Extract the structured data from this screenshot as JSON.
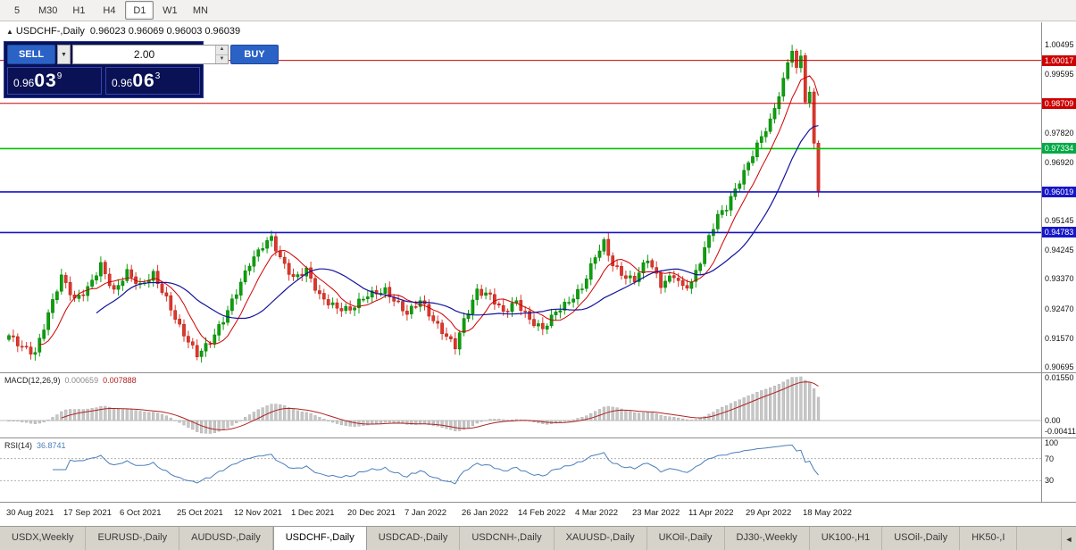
{
  "toolbar": {
    "timeframes": [
      {
        "label": "5",
        "active": false
      },
      {
        "label": "M30",
        "active": false
      },
      {
        "label": "H1",
        "active": false
      },
      {
        "label": "H4",
        "active": false
      },
      {
        "label": "D1",
        "active": true
      },
      {
        "label": "W1",
        "active": false
      },
      {
        "label": "MN",
        "active": false
      }
    ]
  },
  "chart": {
    "symbol_header": {
      "collapse_icon": "▲",
      "title": "USDCHF-,Daily",
      "ohlc": "0.96023 0.96069 0.96003 0.96039"
    },
    "trade_panel": {
      "sell_label": "SELL",
      "buy_label": "BUY",
      "volume": "2.00",
      "dropdown_icon": "▼",
      "spinner_up": "▲",
      "spinner_down": "▼",
      "sell_price": {
        "base": "0.96",
        "big": "03",
        "sup": "9"
      },
      "buy_price": {
        "base": "0.96",
        "big": "06",
        "sup": "3"
      }
    },
    "y_axis_labels": [
      "1.00495",
      "0.99595",
      "0.98695",
      "0.97820",
      "0.96920",
      "0.96020",
      "0.95145",
      "0.94245",
      "0.93370",
      "0.92470",
      "0.91570",
      "0.90695"
    ]
  },
  "indicators": {
    "macd": {
      "name": "MACD(12,26,9)",
      "value_main": "0.000659",
      "value_signal": "0.007888",
      "params": {
        "fast": 12,
        "slow": 26,
        "signal": 9
      },
      "axis": [
        {
          "text": "0.01550",
          "value": 0.0155
        },
        {
          "text": "0.00",
          "value": 0
        },
        {
          "text": "-0.00411",
          "value": -0.00411
        }
      ]
    },
    "rsi": {
      "name": "RSI(14)",
      "value": "36.8741",
      "period": 14,
      "levels": [
        70,
        30
      ],
      "axis": [
        {
          "text": "100",
          "value": 100
        },
        {
          "text": "70",
          "value": 70
        },
        {
          "text": "30",
          "value": 30
        }
      ]
    }
  },
  "tabs": {
    "scroll_left_icon": "◄",
    "items": [
      {
        "label": "USDX,Weekly",
        "active": false
      },
      {
        "label": "EURUSD-,Daily",
        "active": false
      },
      {
        "label": "AUDUSD-,Daily",
        "active": false
      },
      {
        "label": "USDCHF-,Daily",
        "active": true
      },
      {
        "label": "USDCAD-,Daily",
        "active": false
      },
      {
        "label": "USDCNH-,Daily",
        "active": false
      },
      {
        "label": "XAUUSD-,Daily",
        "active": false
      },
      {
        "label": "UKOil-,Daily",
        "active": false
      },
      {
        "label": "DJ30-,Weekly",
        "active": false
      },
      {
        "label": "UK100-,H1",
        "active": false
      },
      {
        "label": "USOil-,Daily",
        "active": false
      },
      {
        "label": "HK50-,I",
        "active": false
      }
    ]
  },
  "colors": {
    "candle_up_fill": "#0ca00c",
    "candle_up_stroke": "#067806",
    "candle_down_fill": "#e0362a",
    "candle_down_stroke": "#a81f16",
    "macd_hist_fill": "#c6c6c6",
    "macd_hist_stroke": "#a8a8a8",
    "macd_signal": "#b22222",
    "macd_zero_line": "#bdbdbd",
    "rsi_line": "#4a7ebb",
    "rsi_level_line": "#b0b0b0",
    "badge_text": "#ffffff"
  },
  "chart_data": {
    "type": "candlestick",
    "title": "USDCHF-,Daily",
    "ohlc_display": {
      "open": "0.96023",
      "high": "0.96069",
      "low": "0.96003",
      "close": "0.96039"
    },
    "bars_count": 186,
    "ylim": [
      0.90695,
      1.00495
    ],
    "price_anchors": [
      [
        0,
        0.9165
      ],
      [
        3,
        0.9135
      ],
      [
        6,
        0.9115
      ],
      [
        9,
        0.923
      ],
      [
        12,
        0.934
      ],
      [
        15,
        0.927
      ],
      [
        18,
        0.931
      ],
      [
        21,
        0.9385
      ],
      [
        24,
        0.93
      ],
      [
        27,
        0.9355
      ],
      [
        30,
        0.931
      ],
      [
        33,
        0.935
      ],
      [
        36,
        0.928
      ],
      [
        39,
        0.9195
      ],
      [
        43,
        0.9105
      ],
      [
        46,
        0.914
      ],
      [
        49,
        0.921
      ],
      [
        52,
        0.93
      ],
      [
        55,
        0.939
      ],
      [
        58,
        0.944
      ],
      [
        60,
        0.946
      ],
      [
        62,
        0.9395
      ],
      [
        65,
        0.9335
      ],
      [
        68,
        0.9365
      ],
      [
        71,
        0.929
      ],
      [
        75,
        0.925
      ],
      [
        78,
        0.924
      ],
      [
        82,
        0.9285
      ],
      [
        86,
        0.9305
      ],
      [
        89,
        0.9265
      ],
      [
        91,
        0.9235
      ],
      [
        94,
        0.927
      ],
      [
        97,
        0.9205
      ],
      [
        100,
        0.916
      ],
      [
        102,
        0.9135
      ],
      [
        104,
        0.9215
      ],
      [
        107,
        0.9305
      ],
      [
        110,
        0.9285
      ],
      [
        113,
        0.923
      ],
      [
        116,
        0.9265
      ],
      [
        119,
        0.9215
      ],
      [
        122,
        0.919
      ],
      [
        125,
        0.924
      ],
      [
        128,
        0.9265
      ],
      [
        131,
        0.9305
      ],
      [
        134,
        0.9405
      ],
      [
        136,
        0.945
      ],
      [
        138,
        0.9385
      ],
      [
        141,
        0.9345
      ],
      [
        143,
        0.9335
      ],
      [
        146,
        0.9395
      ],
      [
        149,
        0.9315
      ],
      [
        152,
        0.935
      ],
      [
        154,
        0.9315
      ],
      [
        156,
        0.933
      ],
      [
        158,
        0.9395
      ],
      [
        160,
        0.9465
      ],
      [
        162,
        0.9525
      ],
      [
        164,
        0.955
      ],
      [
        166,
        0.9605
      ],
      [
        168,
        0.966
      ],
      [
        170,
        0.972
      ],
      [
        172,
        0.9775
      ],
      [
        174,
        0.982
      ],
      [
        176,
        0.99
      ],
      [
        178,
        0.9995
      ],
      [
        179,
        1.003
      ],
      [
        180,
        0.998
      ],
      [
        181,
        1.0015
      ],
      [
        182,
        0.9875
      ],
      [
        183,
        0.9905
      ],
      [
        184,
        0.975
      ],
      [
        185,
        0.96039
      ]
    ],
    "moving_averages": [
      {
        "period": 8,
        "color": "#d00000",
        "width": 1
      },
      {
        "period": 21,
        "color": "#14149e",
        "width": 1.2
      }
    ],
    "horizontal_levels": [
      {
        "price": 1.00017,
        "label": "1.00017",
        "color": "#cc0000",
        "badge": "#cc0000",
        "width": 1
      },
      {
        "price": 0.98709,
        "label": "0.98709",
        "color": "#cc0000",
        "badge": "#cc0000",
        "width": 1
      },
      {
        "price": 0.97334,
        "label": "0.97334",
        "color": "#00c400",
        "badge": "#00aa44",
        "width": 1.6
      },
      {
        "price": 0.96019,
        "label": "0.96019",
        "color": "#1616c8",
        "badge": "#1616c8",
        "width": 1.6
      },
      {
        "price": 0.94783,
        "label": "0.94783",
        "color": "#1616c8",
        "badge": "#1616c8",
        "width": 1.6
      }
    ],
    "x_axis_labels": [
      {
        "text": "30 Aug 2021",
        "index": 0
      },
      {
        "text": "17 Sep 2021",
        "index": 13
      },
      {
        "text": "6 Oct 2021",
        "index": 26
      },
      {
        "text": "25 Oct 2021",
        "index": 39
      },
      {
        "text": "12 Nov 2021",
        "index": 52
      },
      {
        "text": "1 Dec 2021",
        "index": 65
      },
      {
        "text": "20 Dec 2021",
        "index": 78
      },
      {
        "text": "7 Jan 2022",
        "index": 91
      },
      {
        "text": "26 Jan 2022",
        "index": 104
      },
      {
        "text": "14 Feb 2022",
        "index": 117
      },
      {
        "text": "4 Mar 2022",
        "index": 130
      },
      {
        "text": "23 Mar 2022",
        "index": 143
      },
      {
        "text": "11 Apr 2022",
        "index": 156
      },
      {
        "text": "29 Apr 2022",
        "index": 169
      },
      {
        "text": "18 May 2022",
        "index": 182
      }
    ]
  }
}
